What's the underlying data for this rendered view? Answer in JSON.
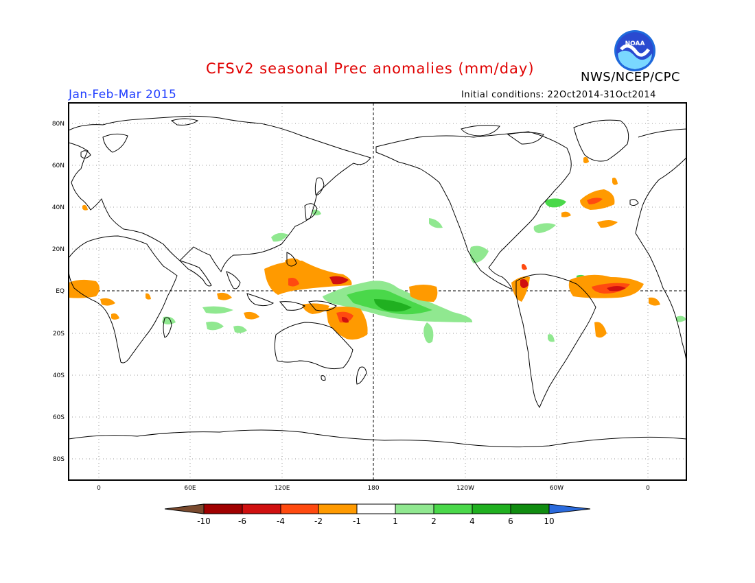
{
  "title": "CFSv2 seasonal Prec anomalies (mm/day)",
  "agency": "NWS/NCEP/CPC",
  "logo_text": "NOAA",
  "period": "Jan-Feb-Mar 2015",
  "initial_conditions": "Initial conditions: 22Oct2014-31Oct2014",
  "lat_labels": [
    "80N",
    "60N",
    "40N",
    "20N",
    "EQ",
    "20S",
    "40S",
    "60S",
    "80S"
  ],
  "lon_labels": [
    "0",
    "60E",
    "120E",
    "180",
    "120W",
    "60W",
    "0"
  ],
  "colorbar": {
    "labels": [
      "-10",
      "-6",
      "-4",
      "-2",
      "-1",
      "1",
      "2",
      "4",
      "6",
      "10"
    ],
    "colors": [
      "#7a4a2e",
      "#a00000",
      "#d01010",
      "#ff4a10",
      "#ff9a00",
      "#ffffff",
      "#90e890",
      "#4ad84a",
      "#20b020",
      "#108c10",
      "#2a6adc"
    ]
  },
  "colors": {
    "dry_strong": "#d01010",
    "dry_moderate": "#ff4a10",
    "dry_weak": "#ff9a00",
    "wet_weak": "#90e890",
    "wet_moderate": "#4ad84a",
    "wet_strong": "#20b020"
  }
}
